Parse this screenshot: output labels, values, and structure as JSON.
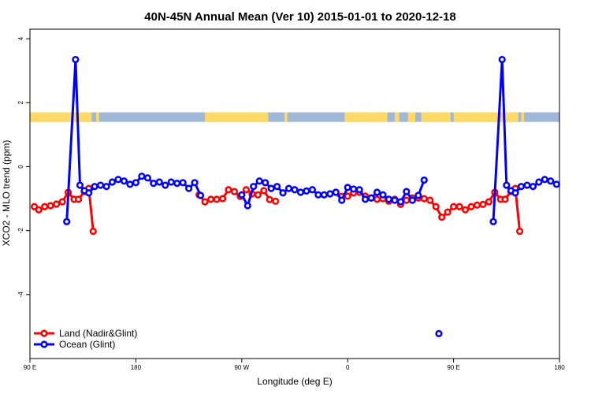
{
  "chart_data": {
    "type": "line",
    "title": "40N-45N Annual Mean (Ver 10)   2015-01-01 to 2020-12-18",
    "xlabel": "Longitude (deg E)",
    "ylabel": "XCO2 - MLO trend (ppm)",
    "xlim": [
      90,
      450
    ],
    "ylim": [
      -6,
      4.3
    ],
    "x_ticks": [
      {
        "value": 90,
        "label": "90 E"
      },
      {
        "value": 162,
        "label": "180"
      },
      {
        "value": 234,
        "label": "90 W"
      },
      {
        "value": 306,
        "label": "0"
      },
      {
        "value": 378,
        "label": "90 E"
      },
      {
        "value": 450,
        "label": "180"
      }
    ],
    "y_ticks": [
      {
        "value": -4,
        "label": "-4"
      },
      {
        "value": -2,
        "label": "-2"
      },
      {
        "value": 0,
        "label": "0"
      },
      {
        "value": 2,
        "label": "2"
      },
      {
        "value": 4,
        "label": "4"
      }
    ],
    "land_ocean_band": {
      "y_top": 1.7,
      "y_bottom": 1.4,
      "land_color": "#FFD966",
      "ocean_color": "#9FB8D8",
      "land_ranges": [
        [
          90,
          132
        ],
        [
          135,
          137
        ],
        [
          209,
          252
        ],
        [
          263,
          265
        ],
        [
          304,
          333
        ],
        [
          338,
          341
        ],
        [
          347,
          352
        ],
        [
          356,
          376
        ],
        [
          378,
          422
        ],
        [
          424,
          426
        ]
      ]
    },
    "series": [
      {
        "name": "Land (Nadir&Glint)",
        "color": "#FF0000",
        "points": [
          [
            93,
            -1.25
          ],
          [
            96,
            -1.35
          ],
          [
            100,
            -1.25
          ],
          [
            104,
            -1.22
          ],
          [
            108,
            -1.17
          ],
          [
            112,
            -1.1
          ],
          [
            116,
            -0.8
          ],
          [
            120,
            -1.02
          ],
          [
            123,
            -1.02
          ],
          [
            127,
            -0.78
          ],
          [
            130,
            -0.68
          ],
          [
            133,
            -2.02
          ],
          null,
          [
            205,
            -0.88
          ],
          [
            209,
            -1.1
          ],
          [
            213,
            -1.02
          ],
          [
            217,
            -1.02
          ],
          [
            221,
            -1.0
          ],
          [
            225,
            -0.72
          ],
          [
            229,
            -0.78
          ],
          [
            233,
            -0.93
          ],
          [
            237,
            -0.72
          ],
          [
            241,
            -0.85
          ],
          [
            245,
            -0.88
          ],
          [
            249,
            -0.75
          ],
          [
            253,
            -1.03
          ],
          [
            257,
            -1.08
          ],
          null,
          [
            298,
            -0.8
          ],
          [
            302,
            -0.93
          ],
          [
            306,
            -0.92
          ],
          [
            310,
            -0.82
          ],
          [
            314,
            -0.8
          ],
          [
            318,
            -0.92
          ],
          [
            322,
            -0.98
          ],
          [
            326,
            -1.02
          ],
          [
            330,
            -1.0
          ],
          [
            334,
            -1.08
          ],
          [
            338,
            -1.02
          ],
          [
            342,
            -1.18
          ],
          [
            346,
            -1.05
          ],
          [
            350,
            -0.98
          ],
          [
            354,
            -0.98
          ],
          [
            358,
            -1.0
          ],
          [
            362,
            -1.05
          ],
          [
            366,
            -1.25
          ],
          [
            370,
            -1.58
          ],
          [
            374,
            -1.42
          ],
          [
            378,
            -1.25
          ],
          [
            382,
            -1.25
          ],
          [
            386,
            -1.35
          ],
          [
            390,
            -1.25
          ],
          [
            394,
            -1.2
          ],
          [
            398,
            -1.18
          ],
          [
            402,
            -1.1
          ],
          [
            406,
            -0.8
          ],
          [
            410,
            -1.02
          ],
          [
            413,
            -1.02
          ],
          [
            417,
            -0.78
          ],
          [
            420,
            -0.68
          ],
          [
            423,
            -2.02
          ]
        ]
      },
      {
        "name": "Ocean (Glint)",
        "color": "#0000FF",
        "points": [
          [
            115,
            -1.72
          ],
          [
            121,
            3.35
          ],
          [
            124,
            -0.58
          ],
          [
            127,
            -0.75
          ],
          [
            130,
            -0.82
          ],
          [
            134,
            -0.62
          ],
          [
            138,
            -0.58
          ],
          [
            142,
            -0.62
          ],
          [
            146,
            -0.48
          ],
          [
            150,
            -0.4
          ],
          [
            154,
            -0.45
          ],
          [
            158,
            -0.55
          ],
          [
            162,
            -0.5
          ],
          [
            166,
            -0.3
          ],
          [
            170,
            -0.35
          ],
          [
            174,
            -0.52
          ],
          [
            178,
            -0.48
          ],
          [
            182,
            -0.58
          ],
          [
            186,
            -0.48
          ],
          [
            190,
            -0.52
          ],
          [
            194,
            -0.5
          ],
          [
            198,
            -0.68
          ],
          [
            202,
            -0.5
          ],
          [
            206,
            -0.9
          ],
          null,
          [
            234,
            -0.88
          ],
          [
            238,
            -1.22
          ],
          [
            242,
            -0.62
          ],
          [
            246,
            -0.45
          ],
          [
            250,
            -0.5
          ],
          [
            254,
            -0.68
          ],
          [
            258,
            -0.62
          ],
          [
            262,
            -0.82
          ],
          [
            266,
            -0.68
          ],
          [
            270,
            -0.72
          ],
          [
            274,
            -0.8
          ],
          [
            278,
            -0.76
          ],
          [
            282,
            -0.72
          ],
          [
            286,
            -0.88
          ],
          [
            290,
            -0.88
          ],
          [
            294,
            -0.85
          ],
          [
            298,
            -0.8
          ],
          [
            302,
            -1.05
          ],
          [
            306,
            -0.65
          ],
          [
            310,
            -0.7
          ],
          [
            314,
            -0.72
          ],
          [
            318,
            -1.02
          ],
          [
            322,
            -0.98
          ],
          [
            326,
            -0.8
          ],
          [
            330,
            -0.88
          ],
          [
            334,
            -1.02
          ],
          [
            338,
            -1.05
          ],
          [
            342,
            -1.1
          ],
          [
            346,
            -0.78
          ],
          [
            350,
            -1.05
          ],
          [
            354,
            -0.9
          ],
          [
            358,
            -0.42
          ],
          null,
          [
            405,
            -1.72
          ],
          [
            411,
            3.35
          ],
          [
            414,
            -0.58
          ],
          [
            417,
            -0.75
          ],
          [
            420,
            -0.82
          ],
          [
            424,
            -0.62
          ],
          [
            428,
            -0.58
          ],
          [
            432,
            -0.62
          ],
          [
            436,
            -0.48
          ],
          [
            440,
            -0.4
          ],
          [
            444,
            -0.45
          ],
          [
            448,
            -0.55
          ],
          null,
          [
            368,
            -5.22
          ]
        ]
      }
    ],
    "legend": {
      "placement": "bottom-left",
      "entries": [
        "Land (Nadir&Glint)",
        "Ocean (Glint)"
      ]
    },
    "grid": false
  }
}
